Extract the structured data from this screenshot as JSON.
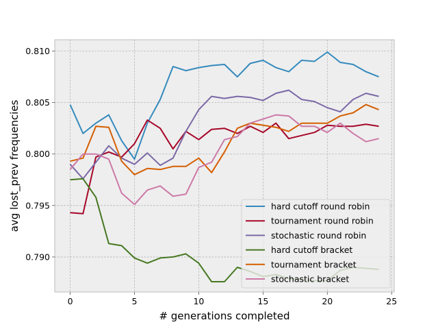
{
  "chart_data": {
    "type": "line",
    "title": "",
    "xlabel": "# generations completed",
    "ylabel": "avg lost_prev frequencies",
    "xlim": [
      -1.2,
      25.2
    ],
    "ylim": [
      0.7866,
      0.8111
    ],
    "xticks": [
      0,
      5,
      10,
      15,
      20,
      25
    ],
    "yticks": [
      0.79,
      0.795,
      0.8,
      0.805,
      0.81
    ],
    "ytick_labels": [
      "0.790",
      "0.795",
      "0.800",
      "0.805",
      "0.810"
    ],
    "grid": true,
    "legend_position": "lower-right",
    "x": [
      0,
      1,
      2,
      3,
      4,
      5,
      6,
      7,
      8,
      9,
      10,
      11,
      12,
      13,
      14,
      15,
      16,
      17,
      18,
      19,
      20,
      21,
      22,
      23,
      24
    ],
    "series": [
      {
        "name": "hard cutoff round robin",
        "color": "#348ABD",
        "values": [
          0.8048,
          0.802,
          0.803,
          0.8038,
          0.8013,
          0.7995,
          0.803,
          0.8053,
          0.8085,
          0.8081,
          0.8084,
          0.8086,
          0.8087,
          0.8075,
          0.8088,
          0.8091,
          0.8084,
          0.808,
          0.8091,
          0.809,
          0.8099,
          0.8089,
          0.8087,
          0.808,
          0.8075
        ]
      },
      {
        "name": "tournament round robin",
        "color": "#A60628",
        "values": [
          0.7943,
          0.7942,
          0.7997,
          0.8002,
          0.7997,
          0.801,
          0.8033,
          0.8025,
          0.8005,
          0.8022,
          0.8014,
          0.8024,
          0.8025,
          0.802,
          0.8027,
          0.8021,
          0.803,
          0.8015,
          0.8018,
          0.8021,
          0.8028,
          0.8027,
          0.8027,
          0.8029,
          0.8027
        ]
      },
      {
        "name": "stochastic round robin",
        "color": "#7A68A6",
        "values": [
          0.799,
          0.7976,
          0.7992,
          0.8008,
          0.7996,
          0.799,
          0.8001,
          0.7989,
          0.7996,
          0.8022,
          0.8043,
          0.8056,
          0.8054,
          0.8056,
          0.8055,
          0.8052,
          0.8059,
          0.8062,
          0.8053,
          0.8051,
          0.8045,
          0.8041,
          0.8053,
          0.8059,
          0.8056
        ]
      },
      {
        "name": "hard cutoff bracket",
        "color": "#467821",
        "values": [
          0.7975,
          0.7976,
          0.7958,
          0.7913,
          0.7911,
          0.7899,
          0.7894,
          0.7899,
          0.79,
          0.7903,
          0.7894,
          0.7876,
          0.7876,
          0.789,
          0.7886,
          0.7881,
          0.7883,
          0.7879,
          0.7878,
          0.7877,
          0.7877,
          0.7887,
          0.789,
          0.7889,
          0.7888
        ]
      },
      {
        "name": "tournament bracket",
        "color": "#D55E00",
        "values": [
          0.7993,
          0.7996,
          0.8027,
          0.8026,
          0.7993,
          0.798,
          0.7986,
          0.7985,
          0.7988,
          0.7988,
          0.7996,
          0.7982,
          0.8002,
          0.8025,
          0.803,
          0.8028,
          0.8026,
          0.8022,
          0.803,
          0.803,
          0.803,
          0.8037,
          0.804,
          0.8048,
          0.8043
        ]
      },
      {
        "name": "stochastic bracket",
        "color": "#CC79A7",
        "values": [
          0.7985,
          0.8,
          0.8,
          0.7995,
          0.7962,
          0.7951,
          0.7965,
          0.7969,
          0.7959,
          0.7961,
          0.7987,
          0.7992,
          0.8014,
          0.8017,
          0.803,
          0.8034,
          0.8038,
          0.8037,
          0.8027,
          0.8027,
          0.8021,
          0.803,
          0.802,
          0.8012,
          0.8015
        ]
      }
    ]
  }
}
